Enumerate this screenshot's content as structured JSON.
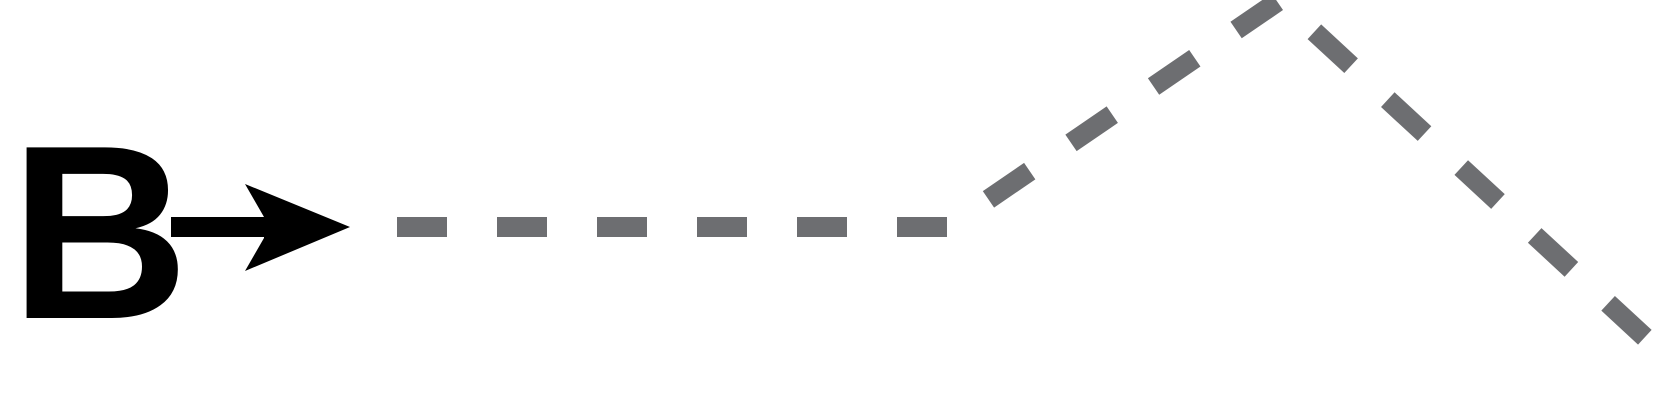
{
  "diagram": {
    "label": "B",
    "colors": {
      "label": "#000000",
      "arrow": "#000000",
      "path": "#6d6e71",
      "background": "#ffffff"
    },
    "icons": {
      "arrow": "right-arrow-icon"
    },
    "path_style": "dashed"
  }
}
